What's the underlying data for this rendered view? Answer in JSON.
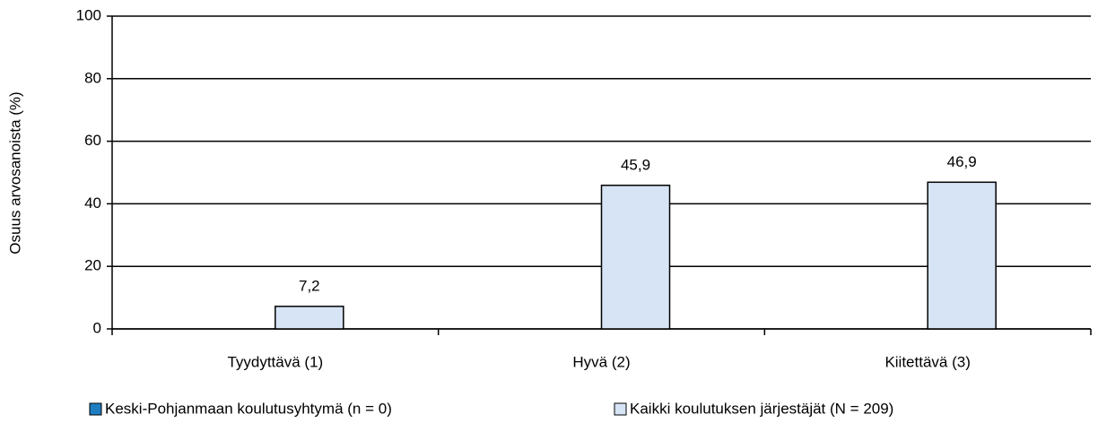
{
  "chart_data": {
    "type": "bar",
    "y_label": "Osuus arvosanoista (%)",
    "categories": [
      "Tyydyttävä (1)",
      "Hyvä (2)",
      "Kiitettävä (3)"
    ],
    "series": [
      {
        "name": "Keski-Pohjanmaan koulutusyhtymä (n = 0)",
        "color": "#1f7ec2",
        "values": [
          null,
          null,
          null
        ]
      },
      {
        "name": "Kaikki koulutuksen järjestäjät (N = 209)",
        "color": "#d7e4f6",
        "values": [
          7.2,
          45.9,
          46.9
        ],
        "value_labels": [
          "7,2",
          "45,9",
          "46,9"
        ]
      }
    ],
    "ylim": [
      0,
      100
    ],
    "yticks": [
      0,
      20,
      40,
      60,
      80,
      100
    ],
    "grid": true
  }
}
